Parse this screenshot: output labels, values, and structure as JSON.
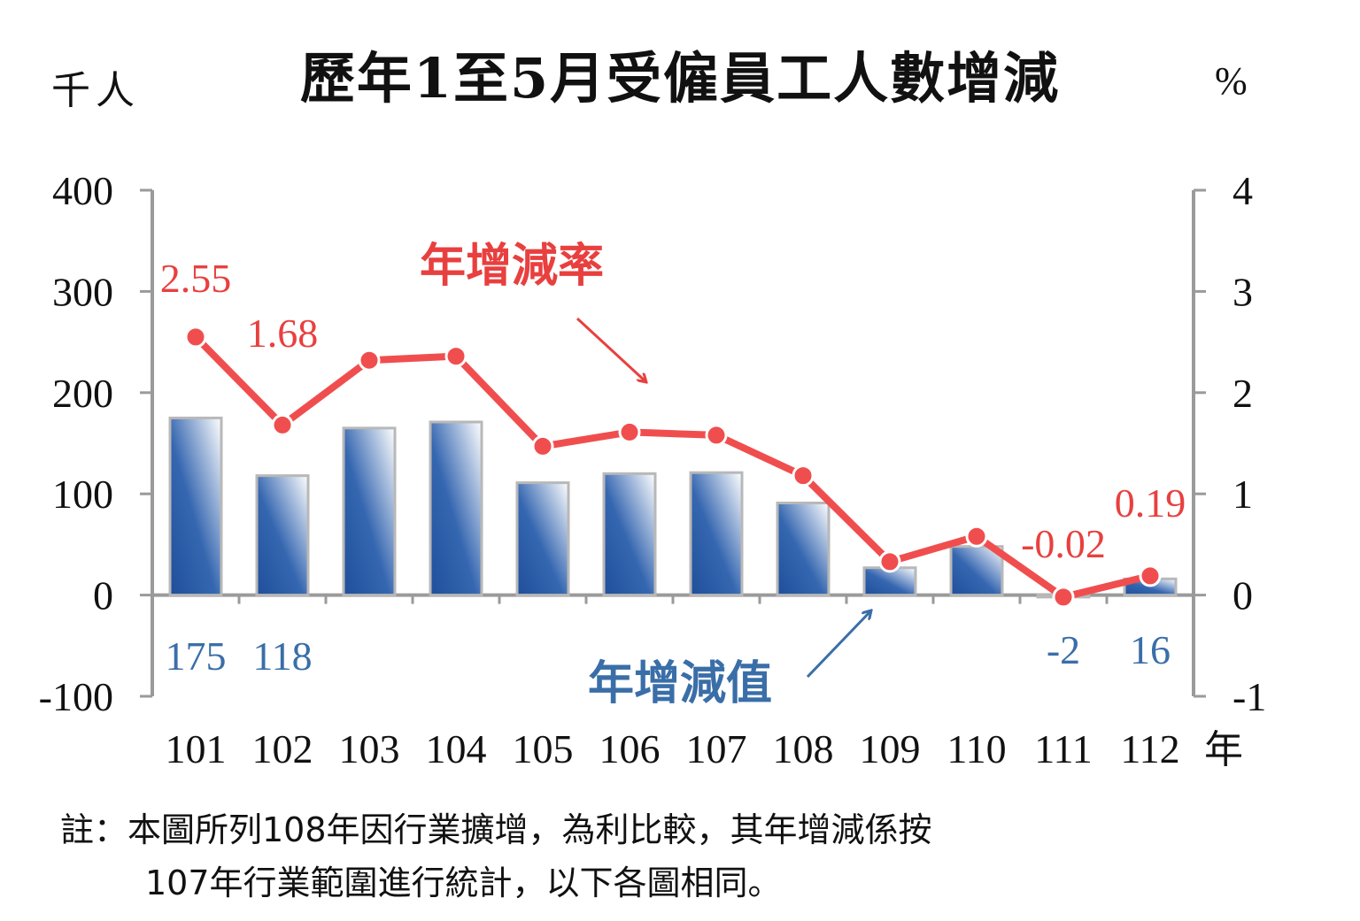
{
  "title": "歷年1至5月受僱員工人數增減",
  "unit_left": "千人",
  "unit_right": "%",
  "x_unit": "年",
  "labels": {
    "rate": "年增減率",
    "value": "年增減值"
  },
  "colors": {
    "bar": "#2f5fa6",
    "line": "#f04e4e",
    "rate_label": "#e8403f",
    "value_label": "#3a6ea8"
  },
  "note": {
    "line1": "註：本圖所列108年因行業擴增，為利比較，其年增減係按",
    "line2": "107年行業範圍進行統計，以下各圖相同。"
  },
  "chart_data": {
    "type": "bar",
    "categories": [
      "101",
      "102",
      "103",
      "104",
      "105",
      "106",
      "107",
      "108",
      "109",
      "110",
      "111",
      "112"
    ],
    "series": [
      {
        "name": "年增減值",
        "type": "bar",
        "axis": "left",
        "values": [
          175,
          118,
          165,
          171,
          111,
          120,
          121,
          91,
          27,
          48,
          -2,
          16
        ]
      },
      {
        "name": "年增減率",
        "type": "line",
        "axis": "right",
        "values": [
          2.55,
          1.68,
          2.32,
          2.36,
          1.47,
          1.61,
          1.58,
          1.18,
          0.33,
          0.58,
          -0.02,
          0.19
        ]
      }
    ],
    "left_axis": {
      "ticks": [
        "400",
        "300",
        "200",
        "100",
        "0",
        "-100"
      ],
      "ylim": [
        -100,
        400
      ]
    },
    "right_axis": {
      "ticks": [
        "4",
        "3",
        "2",
        "1",
        "0",
        "-1"
      ],
      "ylim": [
        -1,
        4
      ]
    },
    "bar_labels": [
      {
        "index": 0,
        "text": "175"
      },
      {
        "index": 1,
        "text": "118"
      },
      {
        "index": 10,
        "text": "-2"
      },
      {
        "index": 11,
        "text": "16"
      }
    ],
    "line_labels": [
      {
        "index": 0,
        "text": "2.55"
      },
      {
        "index": 1,
        "text": "1.68"
      },
      {
        "index": 10,
        "text": "-0.02"
      },
      {
        "index": 11,
        "text": "0.19"
      }
    ]
  }
}
